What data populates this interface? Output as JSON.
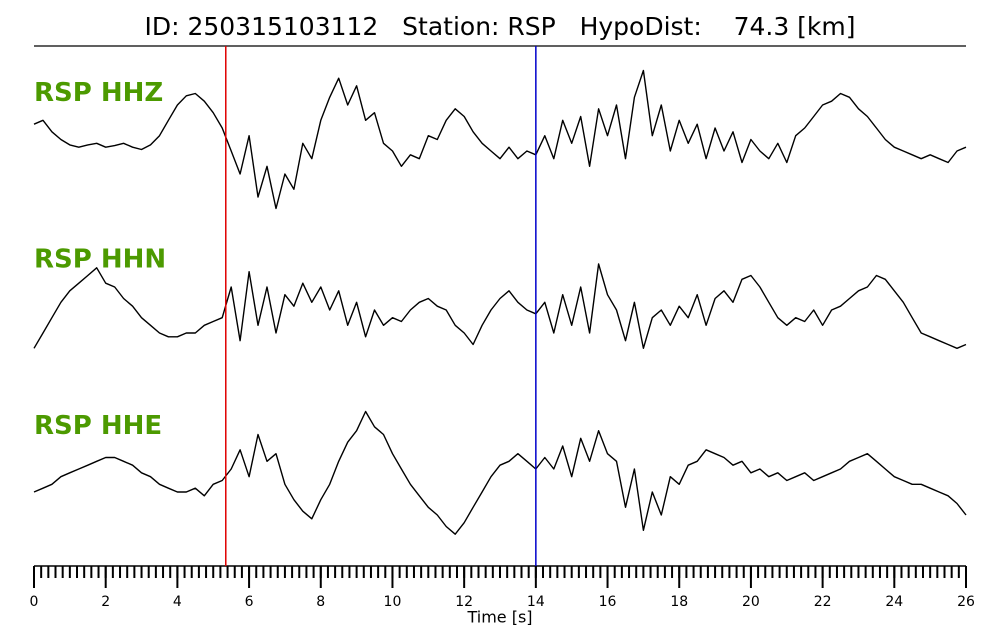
{
  "chart_data": {
    "type": "line",
    "title": "ID: 250315103112   Station: RSP   HypoDist:    74.3 [km]",
    "xlabel": "Time [s]",
    "xlim": [
      0,
      26
    ],
    "xticks": [
      0,
      2,
      4,
      6,
      8,
      10,
      12,
      14,
      16,
      18,
      20,
      22,
      24,
      26
    ],
    "xminor_step": 0.2,
    "ylim": [
      -1,
      1
    ],
    "label_color": "#4c9a00",
    "picks": [
      {
        "x": 5.35,
        "color": "#e00000"
      },
      {
        "x": 14.0,
        "color": "#0000cc"
      }
    ],
    "x": [
      0,
      0.25,
      0.5,
      0.75,
      1,
      1.25,
      1.5,
      1.75,
      2,
      2.25,
      2.5,
      2.75,
      3,
      3.25,
      3.5,
      3.75,
      4,
      4.25,
      4.5,
      4.75,
      5,
      5.25,
      5.5,
      5.75,
      6,
      6.25,
      6.5,
      6.75,
      7,
      7.25,
      7.5,
      7.75,
      8,
      8.25,
      8.5,
      8.75,
      9,
      9.25,
      9.5,
      9.75,
      10,
      10.25,
      10.5,
      10.75,
      11,
      11.25,
      11.5,
      11.75,
      12,
      12.25,
      12.5,
      12.75,
      13,
      13.25,
      13.5,
      13.75,
      14,
      14.25,
      14.5,
      14.75,
      15,
      15.25,
      15.5,
      15.75,
      16,
      16.25,
      16.5,
      16.75,
      17,
      17.25,
      17.5,
      17.75,
      18,
      18.25,
      18.5,
      18.75,
      19,
      19.25,
      19.5,
      19.75,
      20,
      20.25,
      20.5,
      20.75,
      21,
      21.25,
      21.5,
      21.75,
      22,
      22.25,
      22.5,
      22.75,
      23,
      23.25,
      23.5,
      23.75,
      24,
      24.25,
      24.5,
      24.75,
      25,
      25.25,
      25.5,
      25.75,
      26
    ],
    "series": [
      {
        "name": "RSP HHZ",
        "color": "#000000",
        "values": [
          0.25,
          0.3,
          0.15,
          0.05,
          -0.02,
          -0.05,
          -0.02,
          0.0,
          -0.05,
          -0.03,
          0.0,
          -0.05,
          -0.08,
          -0.02,
          0.1,
          0.3,
          0.5,
          0.62,
          0.65,
          0.55,
          0.4,
          0.2,
          -0.1,
          -0.4,
          0.1,
          -0.7,
          -0.3,
          -0.85,
          -0.4,
          -0.6,
          0.0,
          -0.2,
          0.3,
          0.6,
          0.85,
          0.5,
          0.75,
          0.3,
          0.4,
          0.0,
          -0.1,
          -0.3,
          -0.15,
          -0.2,
          0.1,
          0.05,
          0.3,
          0.45,
          0.35,
          0.15,
          0.0,
          -0.1,
          -0.2,
          -0.05,
          -0.2,
          -0.1,
          -0.15,
          0.1,
          -0.2,
          0.3,
          0.0,
          0.35,
          -0.3,
          0.45,
          0.1,
          0.5,
          -0.2,
          0.6,
          0.95,
          0.1,
          0.5,
          -0.1,
          0.3,
          0.0,
          0.25,
          -0.2,
          0.2,
          -0.1,
          0.15,
          -0.25,
          0.05,
          -0.1,
          -0.2,
          0.0,
          -0.25,
          0.1,
          0.2,
          0.35,
          0.5,
          0.55,
          0.65,
          0.6,
          0.45,
          0.35,
          0.2,
          0.05,
          -0.05,
          -0.1,
          -0.15,
          -0.2,
          -0.15,
          -0.2,
          -0.25,
          -0.1,
          -0.05
        ]
      },
      {
        "name": "RSP HHN",
        "color": "#000000",
        "values": [
          -0.5,
          -0.3,
          -0.1,
          0.1,
          0.25,
          0.35,
          0.45,
          0.55,
          0.35,
          0.3,
          0.15,
          0.05,
          -0.1,
          -0.2,
          -0.3,
          -0.35,
          -0.35,
          -0.3,
          -0.3,
          -0.2,
          -0.15,
          -0.1,
          0.3,
          -0.4,
          0.5,
          -0.2,
          0.3,
          -0.3,
          0.2,
          0.05,
          0.35,
          0.1,
          0.3,
          0.0,
          0.25,
          -0.2,
          0.1,
          -0.35,
          0.0,
          -0.2,
          -0.1,
          -0.15,
          0.0,
          0.1,
          0.15,
          0.05,
          0.0,
          -0.2,
          -0.3,
          -0.45,
          -0.2,
          0.0,
          0.15,
          0.25,
          0.1,
          0.0,
          -0.05,
          0.1,
          -0.3,
          0.2,
          -0.2,
          0.3,
          -0.3,
          0.6,
          0.2,
          0.0,
          -0.4,
          0.1,
          -0.5,
          -0.1,
          0.0,
          -0.2,
          0.05,
          -0.1,
          0.2,
          -0.2,
          0.15,
          0.25,
          0.1,
          0.4,
          0.45,
          0.3,
          0.1,
          -0.1,
          -0.2,
          -0.1,
          -0.15,
          0.0,
          -0.2,
          0.0,
          0.05,
          0.15,
          0.25,
          0.3,
          0.45,
          0.4,
          0.25,
          0.1,
          -0.1,
          -0.3,
          -0.35,
          -0.4,
          -0.45,
          -0.5,
          -0.45
        ]
      },
      {
        "name": "RSP HHE",
        "color": "#000000",
        "values": [
          -0.2,
          -0.15,
          -0.1,
          0.0,
          0.05,
          0.1,
          0.15,
          0.2,
          0.25,
          0.25,
          0.2,
          0.15,
          0.05,
          0.0,
          -0.1,
          -0.15,
          -0.2,
          -0.2,
          -0.15,
          -0.25,
          -0.1,
          -0.05,
          0.1,
          0.35,
          0.0,
          0.55,
          0.2,
          0.3,
          -0.1,
          -0.3,
          -0.45,
          -0.55,
          -0.3,
          -0.1,
          0.2,
          0.45,
          0.6,
          0.85,
          0.65,
          0.55,
          0.3,
          0.1,
          -0.1,
          -0.25,
          -0.4,
          -0.5,
          -0.65,
          -0.75,
          -0.6,
          -0.4,
          -0.2,
          0.0,
          0.15,
          0.2,
          0.3,
          0.2,
          0.1,
          0.25,
          0.1,
          0.4,
          0.0,
          0.5,
          0.2,
          0.6,
          0.3,
          0.2,
          -0.4,
          0.1,
          -0.7,
          -0.2,
          -0.5,
          0.0,
          -0.1,
          0.15,
          0.2,
          0.35,
          0.3,
          0.25,
          0.15,
          0.2,
          0.05,
          0.1,
          0.0,
          0.05,
          -0.05,
          0.0,
          0.05,
          -0.05,
          0.0,
          0.05,
          0.1,
          0.2,
          0.25,
          0.3,
          0.2,
          0.1,
          0.0,
          -0.05,
          -0.1,
          -0.1,
          -0.15,
          -0.2,
          -0.25,
          -0.35,
          -0.5
        ]
      }
    ]
  }
}
